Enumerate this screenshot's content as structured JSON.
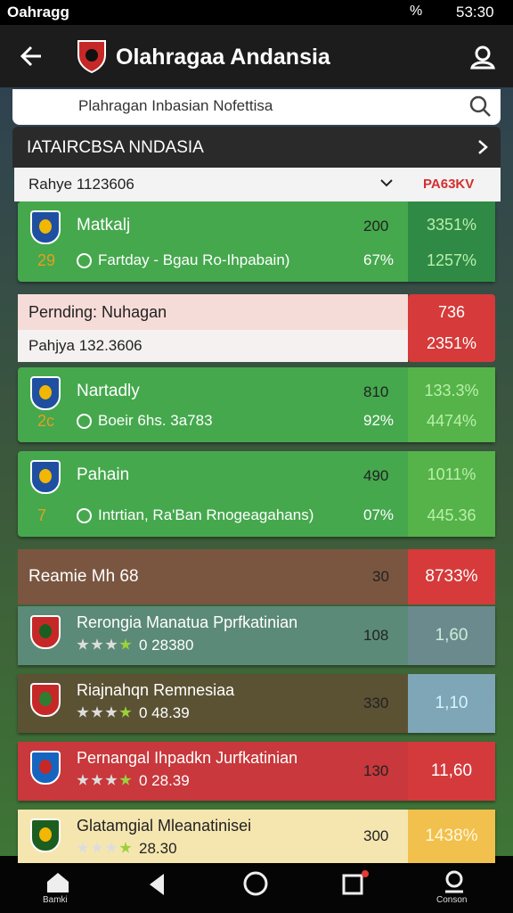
{
  "status_bar": {
    "carrier": "Oahragg",
    "battery": "%",
    "time": "53:30"
  },
  "header": {
    "title": "Olahragaa Andansia"
  },
  "search": {
    "placeholder": "Plahragan Inbasian Nofettisa"
  },
  "section": {
    "title": "IATAIRCBSA NNDASIA"
  },
  "filter": {
    "label": "Rahye 1123606",
    "badge": "PA63KV"
  },
  "matches": [
    {
      "name": "Matkalj",
      "rank": "29",
      "detail": "Fartday - Bgau Ro-Ihpabain)",
      "score": "200",
      "pct": "67%",
      "odds_top": "3351%",
      "odds_bottom": "1257%"
    },
    {
      "name": "Nartadly",
      "rank": "2c",
      "detail": "Boeir 6hs. 3a783",
      "score": "810",
      "pct": "92%",
      "odds_top": "133.3%",
      "odds_bottom": "4474%"
    },
    {
      "name": "Pahain",
      "rank": "7",
      "detail": "Intrtian, Ra'Ban Rnogeagahans)",
      "score": "490",
      "pct": "07%",
      "odds_top": "1011%",
      "odds_bottom": "445.36"
    }
  ],
  "pending": {
    "label": "Pernding: Nuhagan",
    "sub": "Pahjya 132.3606",
    "odds_top": "736",
    "odds_bottom": "2351%"
  },
  "group": {
    "label": "Reamie Mh 68",
    "score": "30",
    "odds": "8733%"
  },
  "teams": [
    {
      "name": "Rerongia Manatua Pprfkatinian",
      "rating": "0 28380",
      "score": "108",
      "odds": "1,60"
    },
    {
      "name": "Riajnahqn Remnesiaa",
      "rating": "0 48.39",
      "score": "330",
      "odds": "1,10"
    },
    {
      "name": "Pernangal Ihpadkn Jurfkatinian",
      "rating": "0 28.39",
      "score": "130",
      "odds": "11,60"
    },
    {
      "name": "Glatamgial Mleanatinisei",
      "rating": "28.30",
      "score": "300",
      "odds": "1438%"
    }
  ],
  "nav": {
    "home": "Bamki",
    "account": "Conson"
  }
}
